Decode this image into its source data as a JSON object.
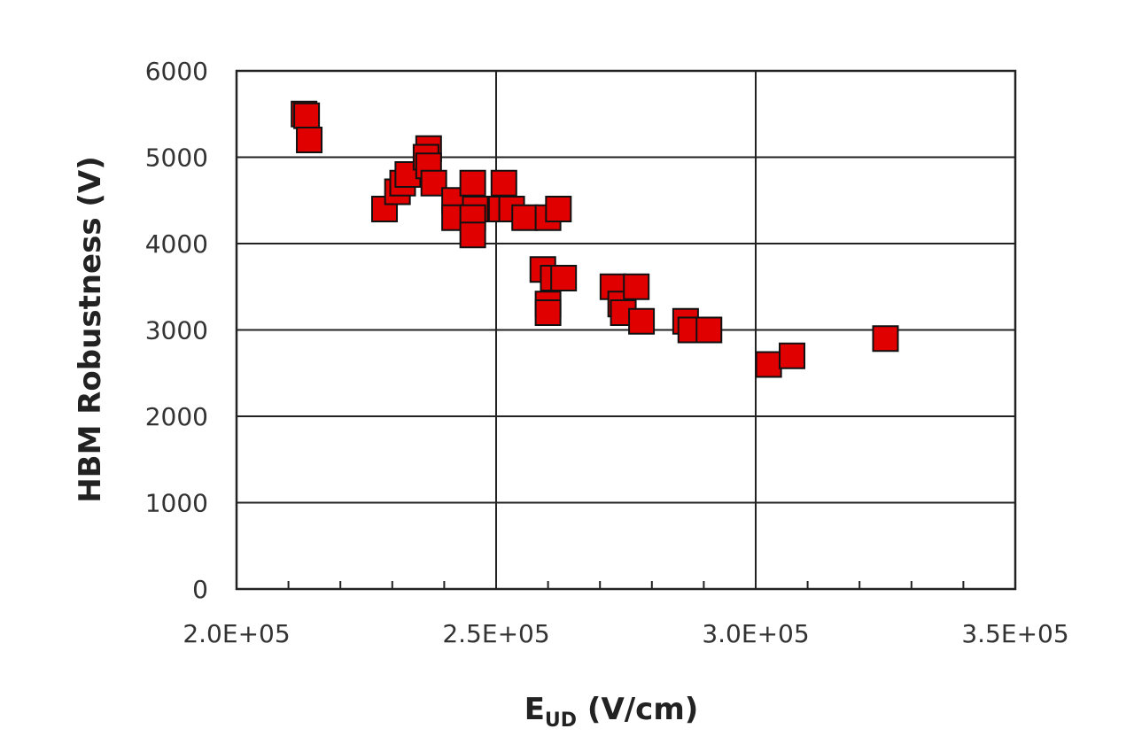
{
  "chart_data": {
    "type": "scatter",
    "xlabel": "E",
    "xlabel_subscript": "UD",
    "xlabel_unit": " (V/cm)",
    "ylabel": "HBM Robustness (V)",
    "xlim": [
      200000,
      350000
    ],
    "ylim": [
      0,
      6000
    ],
    "x_major_ticks": [
      200000,
      250000,
      300000,
      350000
    ],
    "x_tick_labels": [
      "2.0E+05",
      "2.5E+05",
      "3.0E+05",
      "3.5E+05"
    ],
    "x_minor_tick_step": 10000,
    "y_ticks": [
      0,
      1000,
      2000,
      3000,
      4000,
      5000,
      6000
    ],
    "y_tick_labels": [
      "0",
      "1000",
      "2000",
      "3000",
      "4000",
      "5000",
      "6000"
    ],
    "grid": true,
    "marker": "square",
    "marker_color": "#e00000",
    "marker_edge_color": "#111111",
    "points": [
      {
        "x": 213000,
        "y": 5500
      },
      {
        "x": 213500,
        "y": 5480
      },
      {
        "x": 214000,
        "y": 5200
      },
      {
        "x": 228500,
        "y": 4400
      },
      {
        "x": 231000,
        "y": 4600
      },
      {
        "x": 232000,
        "y": 4700
      },
      {
        "x": 233000,
        "y": 4800
      },
      {
        "x": 237000,
        "y": 5100
      },
      {
        "x": 236500,
        "y": 5000
      },
      {
        "x": 237000,
        "y": 4900
      },
      {
        "x": 238000,
        "y": 4700
      },
      {
        "x": 242000,
        "y": 4500
      },
      {
        "x": 242000,
        "y": 4300
      },
      {
        "x": 245500,
        "y": 4700
      },
      {
        "x": 246000,
        "y": 4400
      },
      {
        "x": 245500,
        "y": 4300
      },
      {
        "x": 245500,
        "y": 4100
      },
      {
        "x": 251500,
        "y": 4700
      },
      {
        "x": 251000,
        "y": 4400
      },
      {
        "x": 253000,
        "y": 4400
      },
      {
        "x": 255500,
        "y": 4300
      },
      {
        "x": 260000,
        "y": 4300
      },
      {
        "x": 262000,
        "y": 4400
      },
      {
        "x": 259000,
        "y": 3700
      },
      {
        "x": 261000,
        "y": 3600
      },
      {
        "x": 263000,
        "y": 3600
      },
      {
        "x": 260000,
        "y": 3300
      },
      {
        "x": 260000,
        "y": 3200
      },
      {
        "x": 272500,
        "y": 3500
      },
      {
        "x": 274000,
        "y": 3300
      },
      {
        "x": 274500,
        "y": 3200
      },
      {
        "x": 277000,
        "y": 3500
      },
      {
        "x": 278000,
        "y": 3100
      },
      {
        "x": 286500,
        "y": 3100
      },
      {
        "x": 287500,
        "y": 3000
      },
      {
        "x": 291000,
        "y": 3000
      },
      {
        "x": 302500,
        "y": 2600
      },
      {
        "x": 307000,
        "y": 2700
      },
      {
        "x": 325000,
        "y": 2900
      }
    ]
  }
}
